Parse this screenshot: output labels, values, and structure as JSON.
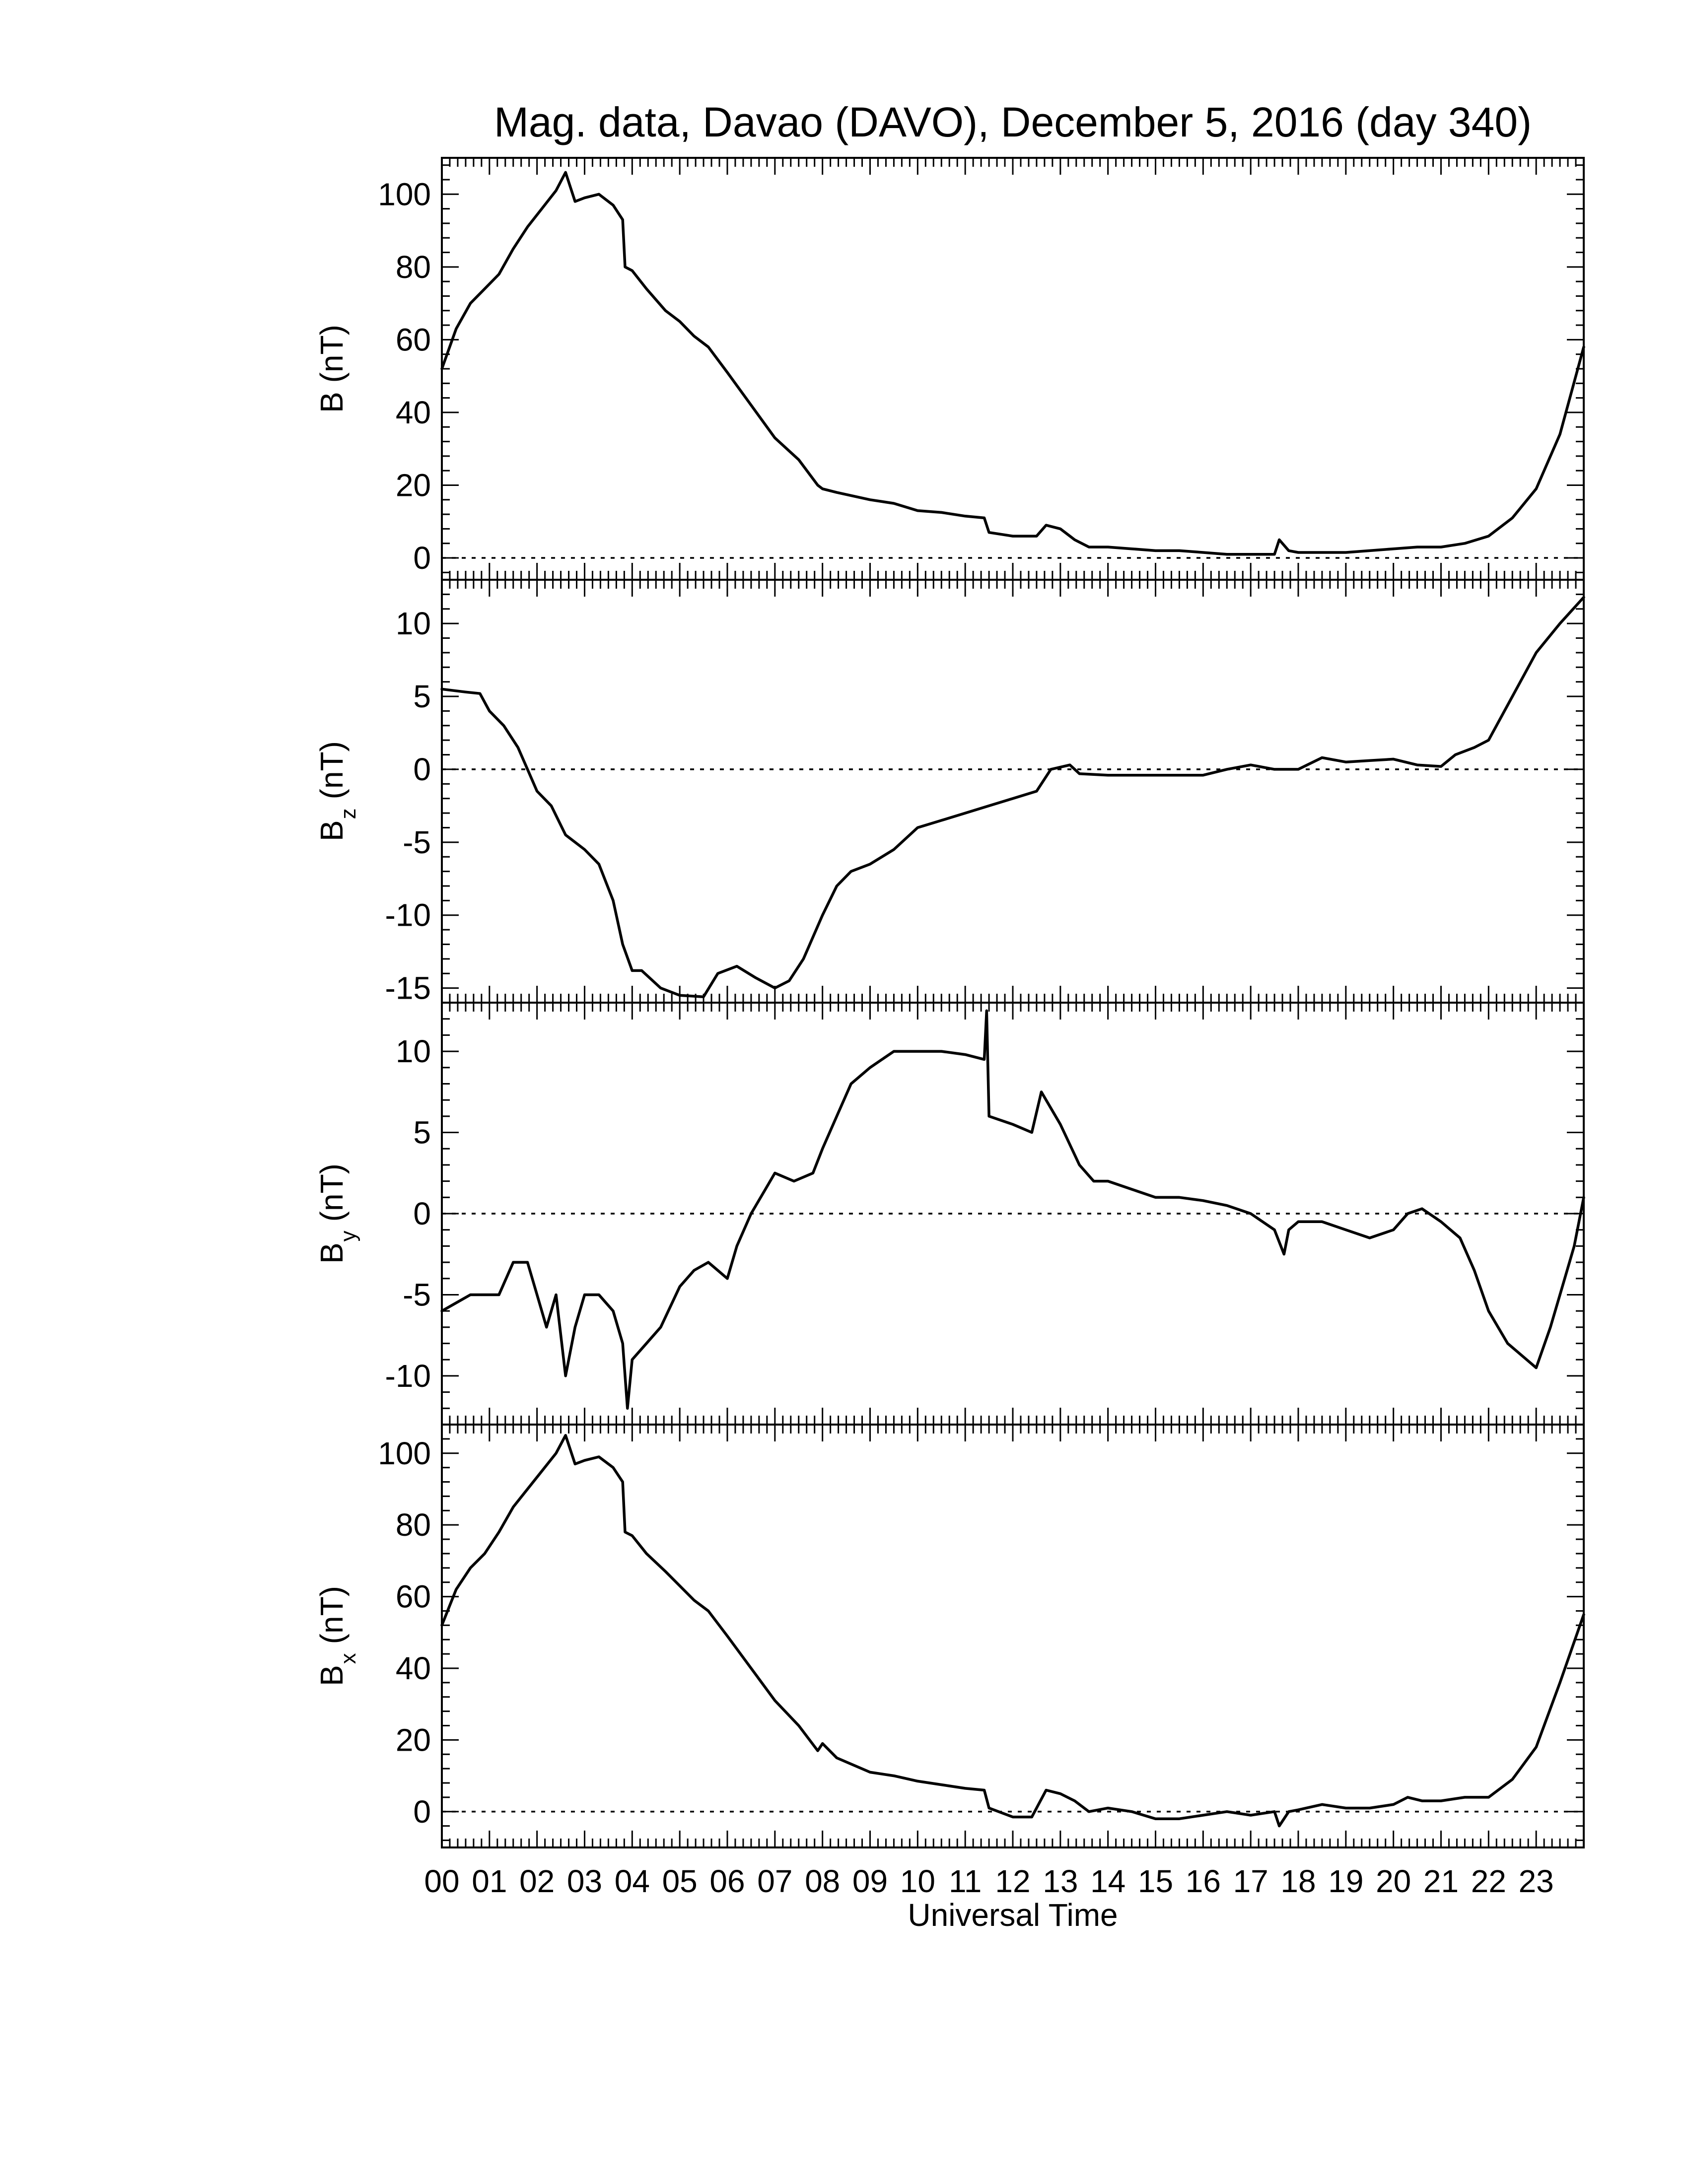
{
  "title": "Mag. data, Davao (DAVO), December 5, 2016 (day 340)",
  "chart_data": [
    {
      "type": "line",
      "panel": "B",
      "ylabel": "B (nT)",
      "ylim": [
        -6,
        110
      ],
      "yticks": [
        0,
        20,
        40,
        60,
        80,
        100
      ],
      "zero_line": true,
      "xlim": [
        0,
        24
      ],
      "x_unit": "hours UT",
      "points": [
        [
          0,
          52
        ],
        [
          0.3,
          63
        ],
        [
          0.6,
          70
        ],
        [
          0.9,
          74
        ],
        [
          1.2,
          78
        ],
        [
          1.5,
          85
        ],
        [
          1.8,
          91
        ],
        [
          2.1,
          96
        ],
        [
          2.4,
          101
        ],
        [
          2.6,
          106
        ],
        [
          2.8,
          98
        ],
        [
          3.0,
          99
        ],
        [
          3.3,
          100
        ],
        [
          3.6,
          97
        ],
        [
          3.8,
          93
        ],
        [
          3.85,
          80
        ],
        [
          4.0,
          79
        ],
        [
          4.3,
          74
        ],
        [
          4.7,
          68
        ],
        [
          5.0,
          65
        ],
        [
          5.3,
          61
        ],
        [
          5.6,
          58
        ],
        [
          6.0,
          51
        ],
        [
          6.5,
          42
        ],
        [
          7.0,
          33
        ],
        [
          7.5,
          27
        ],
        [
          7.9,
          20
        ],
        [
          8.0,
          19
        ],
        [
          8.3,
          18
        ],
        [
          9.0,
          16
        ],
        [
          9.5,
          15
        ],
        [
          10.0,
          13
        ],
        [
          10.5,
          12.5
        ],
        [
          11.0,
          11.5
        ],
        [
          11.4,
          11
        ],
        [
          11.5,
          7
        ],
        [
          12.0,
          6
        ],
        [
          12.5,
          6
        ],
        [
          12.7,
          9
        ],
        [
          13.0,
          8
        ],
        [
          13.3,
          5
        ],
        [
          13.6,
          3
        ],
        [
          14.0,
          3
        ],
        [
          14.5,
          2.5
        ],
        [
          15.0,
          2
        ],
        [
          15.5,
          2
        ],
        [
          16.0,
          1.5
        ],
        [
          16.5,
          1
        ],
        [
          17.0,
          1
        ],
        [
          17.5,
          1
        ],
        [
          17.6,
          5
        ],
        [
          17.8,
          2
        ],
        [
          18.0,
          1.5
        ],
        [
          18.5,
          1.5
        ],
        [
          19.0,
          1.5
        ],
        [
          19.5,
          2
        ],
        [
          20.0,
          2.5
        ],
        [
          20.5,
          3
        ],
        [
          21.0,
          3
        ],
        [
          21.5,
          4
        ],
        [
          22.0,
          6
        ],
        [
          22.5,
          11
        ],
        [
          23.0,
          19
        ],
        [
          23.5,
          34
        ],
        [
          24.0,
          58
        ]
      ]
    },
    {
      "type": "line",
      "panel": "Bz",
      "ylabel": "B",
      "ylabel_sub": "z",
      "ylabel_unit": "(nT)",
      "ylim": [
        -16,
        13
      ],
      "yticks": [
        -15,
        -10,
        -5,
        0,
        5,
        10
      ],
      "zero_line": true,
      "xlim": [
        0,
        24
      ],
      "x_unit": "hours UT",
      "points": [
        [
          0,
          5.5
        ],
        [
          0.5,
          5.3
        ],
        [
          0.8,
          5.2
        ],
        [
          1.0,
          4
        ],
        [
          1.3,
          3
        ],
        [
          1.6,
          1.5
        ],
        [
          1.8,
          0
        ],
        [
          2.0,
          -1.5
        ],
        [
          2.3,
          -2.5
        ],
        [
          2.6,
          -4.5
        ],
        [
          3.0,
          -5.5
        ],
        [
          3.3,
          -6.5
        ],
        [
          3.6,
          -9
        ],
        [
          3.8,
          -12
        ],
        [
          4.0,
          -13.8
        ],
        [
          4.2,
          -13.8
        ],
        [
          4.6,
          -15
        ],
        [
          5.0,
          -15.5
        ],
        [
          5.5,
          -15.6
        ],
        [
          5.8,
          -14
        ],
        [
          6.2,
          -13.5
        ],
        [
          6.6,
          -14.3
        ],
        [
          7.0,
          -15
        ],
        [
          7.3,
          -14.5
        ],
        [
          7.6,
          -13
        ],
        [
          8.0,
          -10
        ],
        [
          8.3,
          -8
        ],
        [
          8.6,
          -7
        ],
        [
          9.0,
          -6.5
        ],
        [
          9.5,
          -5.5
        ],
        [
          10.0,
          -4
        ],
        [
          10.5,
          -3.5
        ],
        [
          11.0,
          -3
        ],
        [
          11.5,
          -2.5
        ],
        [
          12.0,
          -2
        ],
        [
          12.5,
          -1.5
        ],
        [
          12.8,
          0
        ],
        [
          13.2,
          0.3
        ],
        [
          13.4,
          -0.3
        ],
        [
          14.0,
          -0.4
        ],
        [
          15.0,
          -0.4
        ],
        [
          16.0,
          -0.4
        ],
        [
          16.5,
          0
        ],
        [
          17.0,
          0.3
        ],
        [
          17.5,
          0
        ],
        [
          18.0,
          0
        ],
        [
          18.5,
          0.8
        ],
        [
          19.0,
          0.5
        ],
        [
          19.5,
          0.6
        ],
        [
          20.0,
          0.7
        ],
        [
          20.5,
          0.3
        ],
        [
          21.0,
          0.2
        ],
        [
          21.3,
          1
        ],
        [
          21.7,
          1.5
        ],
        [
          22.0,
          2
        ],
        [
          22.5,
          5
        ],
        [
          23.0,
          8
        ],
        [
          23.5,
          10
        ],
        [
          24.0,
          11.8
        ]
      ]
    },
    {
      "type": "line",
      "panel": "By",
      "ylabel": "B",
      "ylabel_sub": "y",
      "ylabel_unit": "(nT)",
      "ylim": [
        -13,
        13
      ],
      "yticks": [
        -10,
        -5,
        0,
        5,
        10
      ],
      "zero_line": true,
      "xlim": [
        0,
        24
      ],
      "x_unit": "hours UT",
      "points": [
        [
          0,
          -6
        ],
        [
          0.3,
          -5.5
        ],
        [
          0.6,
          -5
        ],
        [
          0.9,
          -5
        ],
        [
          1.2,
          -5
        ],
        [
          1.5,
          -3
        ],
        [
          1.8,
          -3
        ],
        [
          2.0,
          -5
        ],
        [
          2.2,
          -7
        ],
        [
          2.4,
          -5
        ],
        [
          2.6,
          -10
        ],
        [
          2.8,
          -7
        ],
        [
          3.0,
          -5
        ],
        [
          3.3,
          -5
        ],
        [
          3.6,
          -6
        ],
        [
          3.8,
          -8
        ],
        [
          3.9,
          -12
        ],
        [
          4.0,
          -9
        ],
        [
          4.3,
          -8
        ],
        [
          4.6,
          -7
        ],
        [
          5.0,
          -4.5
        ],
        [
          5.3,
          -3.5
        ],
        [
          5.6,
          -3
        ],
        [
          5.8,
          -3.5
        ],
        [
          6.0,
          -4
        ],
        [
          6.2,
          -2
        ],
        [
          6.5,
          0
        ],
        [
          6.8,
          1.5
        ],
        [
          7.0,
          2.5
        ],
        [
          7.4,
          2
        ],
        [
          7.8,
          2.5
        ],
        [
          8.0,
          4
        ],
        [
          8.3,
          6
        ],
        [
          8.6,
          8
        ],
        [
          9.0,
          9
        ],
        [
          9.5,
          10
        ],
        [
          10.0,
          10
        ],
        [
          10.5,
          10
        ],
        [
          11.0,
          9.8
        ],
        [
          11.4,
          9.5
        ],
        [
          11.45,
          12.5
        ],
        [
          11.5,
          6
        ],
        [
          12.0,
          5.5
        ],
        [
          12.4,
          5
        ],
        [
          12.6,
          7.5
        ],
        [
          13.0,
          5.5
        ],
        [
          13.4,
          3
        ],
        [
          13.7,
          2
        ],
        [
          14.0,
          2
        ],
        [
          14.5,
          1.5
        ],
        [
          15.0,
          1
        ],
        [
          15.5,
          1
        ],
        [
          16.0,
          0.8
        ],
        [
          16.5,
          0.5
        ],
        [
          17.0,
          0
        ],
        [
          17.5,
          -1
        ],
        [
          17.7,
          -2.5
        ],
        [
          17.8,
          -1
        ],
        [
          18.0,
          -0.5
        ],
        [
          18.5,
          -0.5
        ],
        [
          19.0,
          -1
        ],
        [
          19.5,
          -1.5
        ],
        [
          20.0,
          -1
        ],
        [
          20.3,
          0
        ],
        [
          20.6,
          0.3
        ],
        [
          21.0,
          -0.5
        ],
        [
          21.4,
          -1.5
        ],
        [
          21.7,
          -3.5
        ],
        [
          22.0,
          -6
        ],
        [
          22.4,
          -8
        ],
        [
          22.8,
          -9
        ],
        [
          23.0,
          -9.5
        ],
        [
          23.3,
          -7
        ],
        [
          23.6,
          -4
        ],
        [
          23.8,
          -2
        ],
        [
          24.0,
          1
        ]
      ]
    },
    {
      "type": "line",
      "panel": "Bx",
      "ylabel": "B",
      "ylabel_sub": "x",
      "ylabel_unit": "(nT)",
      "ylim": [
        -10,
        108
      ],
      "yticks": [
        0,
        20,
        40,
        60,
        80,
        100
      ],
      "zero_line": true,
      "xlim": [
        0,
        24
      ],
      "x_unit": "hours UT",
      "points": [
        [
          0,
          52
        ],
        [
          0.3,
          62
        ],
        [
          0.6,
          68
        ],
        [
          0.9,
          72
        ],
        [
          1.2,
          78
        ],
        [
          1.5,
          85
        ],
        [
          1.8,
          90
        ],
        [
          2.1,
          95
        ],
        [
          2.4,
          100
        ],
        [
          2.6,
          105
        ],
        [
          2.8,
          97
        ],
        [
          3.0,
          98
        ],
        [
          3.3,
          99
        ],
        [
          3.6,
          96
        ],
        [
          3.8,
          92
        ],
        [
          3.85,
          78
        ],
        [
          4.0,
          77
        ],
        [
          4.3,
          72
        ],
        [
          4.7,
          67
        ],
        [
          5.0,
          63
        ],
        [
          5.3,
          59
        ],
        [
          5.6,
          56
        ],
        [
          6.0,
          49
        ],
        [
          6.5,
          40
        ],
        [
          7.0,
          31
        ],
        [
          7.5,
          24
        ],
        [
          7.9,
          17
        ],
        [
          8.0,
          19
        ],
        [
          8.3,
          15
        ],
        [
          9.0,
          11
        ],
        [
          9.5,
          10
        ],
        [
          10.0,
          8.5
        ],
        [
          10.5,
          7.5
        ],
        [
          11.0,
          6.5
        ],
        [
          11.4,
          6
        ],
        [
          11.5,
          1
        ],
        [
          12.0,
          -1.5
        ],
        [
          12.4,
          -1.5
        ],
        [
          12.7,
          6
        ],
        [
          13.0,
          5
        ],
        [
          13.3,
          3
        ],
        [
          13.6,
          0
        ],
        [
          14.0,
          1
        ],
        [
          14.5,
          0
        ],
        [
          15.0,
          -2
        ],
        [
          15.5,
          -2
        ],
        [
          16.0,
          -1
        ],
        [
          16.5,
          0
        ],
        [
          17.0,
          -1
        ],
        [
          17.5,
          0
        ],
        [
          17.6,
          -4
        ],
        [
          17.8,
          0
        ],
        [
          18.0,
          0.5
        ],
        [
          18.5,
          2
        ],
        [
          19.0,
          1
        ],
        [
          19.5,
          1
        ],
        [
          20.0,
          2
        ],
        [
          20.3,
          4
        ],
        [
          20.6,
          3
        ],
        [
          21.0,
          3
        ],
        [
          21.5,
          4
        ],
        [
          22.0,
          4
        ],
        [
          22.5,
          9
        ],
        [
          23.0,
          18
        ],
        [
          23.5,
          36
        ],
        [
          24.0,
          55
        ]
      ]
    }
  ],
  "x_axis": {
    "label": "Universal Time",
    "tick_labels": [
      "00",
      "01",
      "02",
      "03",
      "04",
      "05",
      "06",
      "07",
      "08",
      "09",
      "10",
      "11",
      "12",
      "13",
      "14",
      "15",
      "16",
      "17",
      "18",
      "19",
      "20",
      "21",
      "22",
      "23"
    ]
  }
}
